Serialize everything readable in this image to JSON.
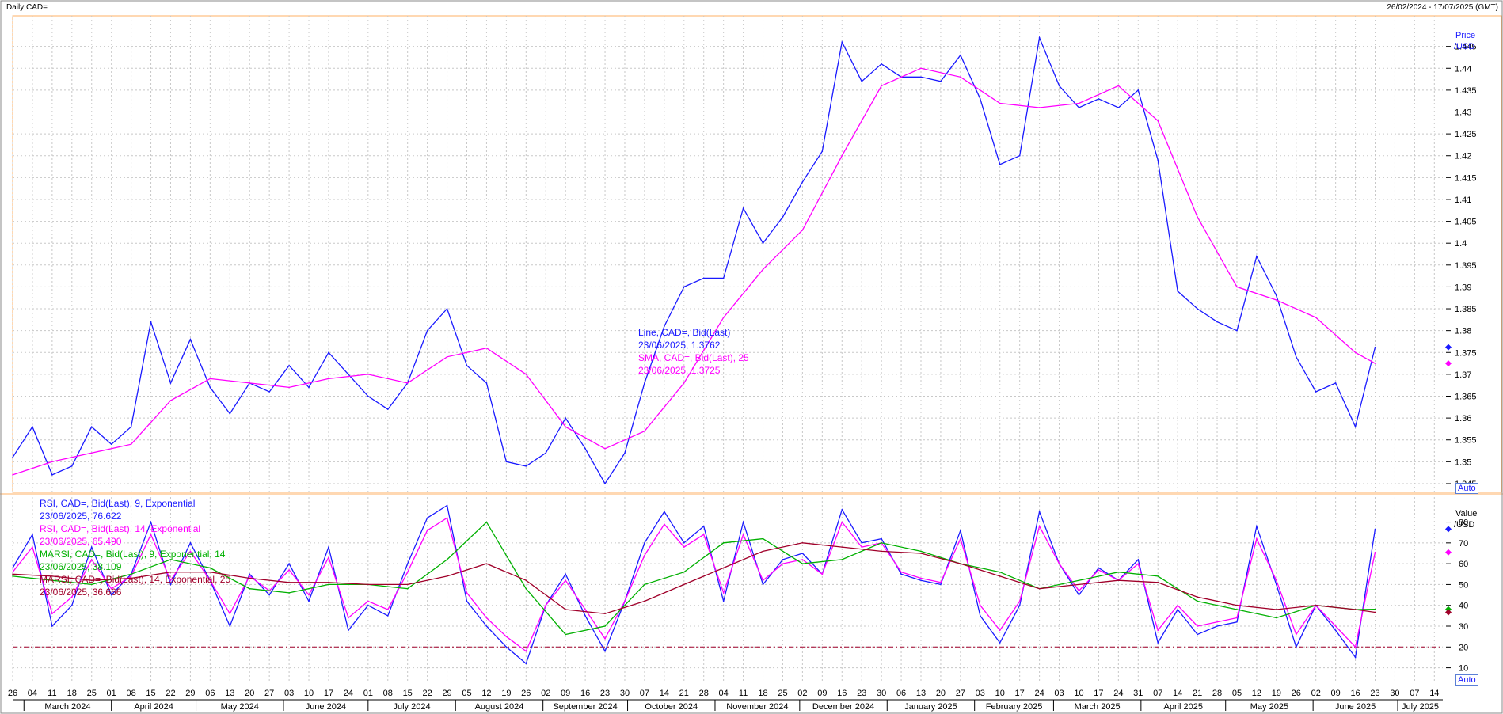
{
  "header": {
    "title": "Daily CAD=",
    "date_range": "26/02/2024 - 17/07/2025 (GMT)"
  },
  "colors": {
    "line": "#1a1aff",
    "sma": "#ff00ff",
    "rsi14": "#ff00ff",
    "marsi9": "#00b000",
    "marsi14": "#a0002a",
    "band": "#a0002a",
    "grid": "#c8c8c8",
    "frame": "#ffb266"
  },
  "buttons": {
    "auto_top": "Auto",
    "auto_bottom": "Auto"
  },
  "annotations": {
    "price": [
      {
        "text": "Line, CAD=, Bid(Last)",
        "color": "#1a1aff"
      },
      {
        "text": "23/06/2025, 1.3762",
        "color": "#1a1aff"
      },
      {
        "text": "SMA, CAD=, Bid(Last),  25",
        "color": "#ff00ff"
      },
      {
        "text": "23/06/2025, 1.3725",
        "color": "#ff00ff"
      }
    ],
    "rsi": [
      {
        "text": "RSI, CAD=, Bid(Last),  9, Exponential",
        "color": "#1a1aff"
      },
      {
        "text": "23/06/2025, 76.622",
        "color": "#1a1aff"
      },
      {
        "text": "RSI, CAD=, Bid(Last),  14, Exponential",
        "color": "#ff00ff"
      },
      {
        "text": "23/06/2025, 65.490",
        "color": "#ff00ff"
      },
      {
        "text": "MARSI, CAD=, Bid(Last),  9, Exponential, 14",
        "color": "#00b000"
      },
      {
        "text": "23/06/2025, 38.109",
        "color": "#00b000"
      },
      {
        "text": "MARSI, CAD=, Bid(Last),  14, Exponential, 25",
        "color": "#a0002a"
      },
      {
        "text": "23/06/2025, 36.666",
        "color": "#a0002a"
      }
    ]
  },
  "chart_data": [
    {
      "type": "line",
      "panel": "price",
      "yaxis_title": [
        "Price",
        "/USD"
      ],
      "ylim": [
        1.343,
        1.452
      ],
      "yticks": [
        "1.345",
        "1.35",
        "1.355",
        "1.36",
        "1.365",
        "1.37",
        "1.375",
        "1.38",
        "1.385",
        "1.39",
        "1.395",
        "1.4",
        "1.405",
        "1.41",
        "1.415",
        "1.42",
        "1.425",
        "1.43",
        "1.435",
        "1.44",
        "1.445"
      ],
      "grid": true,
      "x_start": "2024-02-26",
      "x_end": "2025-07-17",
      "week_labels": [
        "26",
        "04",
        "11",
        "18",
        "25",
        "01",
        "08",
        "15",
        "22",
        "29",
        "06",
        "13",
        "20",
        "27",
        "03",
        "10",
        "17",
        "24",
        "01",
        "08",
        "15",
        "22",
        "29",
        "05",
        "12",
        "19",
        "26",
        "02",
        "09",
        "16",
        "23",
        "30",
        "07",
        "14",
        "21",
        "28",
        "04",
        "11",
        "18",
        "25",
        "02",
        "09",
        "16",
        "23",
        "30",
        "06",
        "13",
        "20",
        "27",
        "03",
        "10",
        "17",
        "24",
        "03",
        "10",
        "17",
        "24",
        "31",
        "07",
        "14",
        "21",
        "28",
        "05",
        "12",
        "19",
        "26",
        "02",
        "09",
        "16",
        "23",
        "30",
        "07",
        "14"
      ],
      "month_labels": [
        "March 2024",
        "April 2024",
        "May 2024",
        "June 2024",
        "July 2024",
        "August 2024",
        "September 2024",
        "October 2024",
        "November 2024",
        "December 2024",
        "January 2025",
        "February 2025",
        "March 2025",
        "April 2025",
        "May 2025",
        "June 2025",
        "July 2025"
      ],
      "series": [
        {
          "name": "Line, CAD=, Bid(Last)",
          "color": "#1a1aff",
          "x": [
            "2024-02-26",
            "2024-03-04",
            "2024-03-11",
            "2024-03-18",
            "2024-03-25",
            "2024-04-01",
            "2024-04-08",
            "2024-04-15",
            "2024-04-22",
            "2024-04-29",
            "2024-05-06",
            "2024-05-13",
            "2024-05-20",
            "2024-05-27",
            "2024-06-03",
            "2024-06-10",
            "2024-06-17",
            "2024-06-24",
            "2024-07-01",
            "2024-07-08",
            "2024-07-15",
            "2024-07-22",
            "2024-07-29",
            "2024-08-05",
            "2024-08-12",
            "2024-08-19",
            "2024-08-26",
            "2024-09-02",
            "2024-09-09",
            "2024-09-16",
            "2024-09-23",
            "2024-09-30",
            "2024-10-07",
            "2024-10-14",
            "2024-10-21",
            "2024-10-28",
            "2024-11-04",
            "2024-11-11",
            "2024-11-18",
            "2024-11-25",
            "2024-12-02",
            "2024-12-09",
            "2024-12-16",
            "2024-12-23",
            "2024-12-30",
            "2025-01-06",
            "2025-01-13",
            "2025-01-20",
            "2025-01-27",
            "2025-02-03",
            "2025-02-10",
            "2025-02-17",
            "2025-02-24",
            "2025-03-03",
            "2025-03-10",
            "2025-03-17",
            "2025-03-24",
            "2025-03-31",
            "2025-04-07",
            "2025-04-14",
            "2025-04-21",
            "2025-04-28",
            "2025-05-05",
            "2025-05-12",
            "2025-05-19",
            "2025-05-26",
            "2025-06-02",
            "2025-06-09",
            "2025-06-16",
            "2025-06-23"
          ],
          "y": [
            1.351,
            1.358,
            1.347,
            1.349,
            1.358,
            1.354,
            1.358,
            1.382,
            1.368,
            1.378,
            1.367,
            1.361,
            1.368,
            1.366,
            1.372,
            1.367,
            1.375,
            1.37,
            1.365,
            1.362,
            1.368,
            1.38,
            1.385,
            1.372,
            1.368,
            1.35,
            1.349,
            1.352,
            1.36,
            1.353,
            1.345,
            1.352,
            1.368,
            1.381,
            1.39,
            1.392,
            1.392,
            1.408,
            1.4,
            1.406,
            1.414,
            1.421,
            1.446,
            1.437,
            1.441,
            1.438,
            1.438,
            1.437,
            1.443,
            1.433,
            1.418,
            1.42,
            1.447,
            1.436,
            1.431,
            1.433,
            1.431,
            1.435,
            1.419,
            1.389,
            1.385,
            1.382,
            1.38,
            1.397,
            1.388,
            1.374,
            1.366,
            1.368,
            1.358,
            1.3762
          ]
        },
        {
          "name": "SMA, CAD=, Bid(Last),  25",
          "color": "#ff00ff",
          "x": [
            "2024-02-26",
            "2024-03-11",
            "2024-03-25",
            "2024-04-08",
            "2024-04-22",
            "2024-05-06",
            "2024-05-20",
            "2024-06-03",
            "2024-06-17",
            "2024-07-01",
            "2024-07-15",
            "2024-07-29",
            "2024-08-12",
            "2024-08-26",
            "2024-09-09",
            "2024-09-23",
            "2024-10-07",
            "2024-10-21",
            "2024-11-04",
            "2024-11-18",
            "2024-12-02",
            "2024-12-16",
            "2024-12-30",
            "2025-01-13",
            "2025-01-27",
            "2025-02-10",
            "2025-02-24",
            "2025-03-10",
            "2025-03-24",
            "2025-04-07",
            "2025-04-21",
            "2025-05-05",
            "2025-05-19",
            "2025-06-02",
            "2025-06-16",
            "2025-06-23"
          ],
          "y": [
            1.347,
            1.35,
            1.352,
            1.354,
            1.364,
            1.369,
            1.368,
            1.367,
            1.369,
            1.37,
            1.368,
            1.374,
            1.376,
            1.37,
            1.358,
            1.353,
            1.357,
            1.368,
            1.383,
            1.394,
            1.403,
            1.42,
            1.436,
            1.44,
            1.438,
            1.432,
            1.431,
            1.432,
            1.436,
            1.428,
            1.406,
            1.39,
            1.387,
            1.383,
            1.375,
            1.3725
          ]
        }
      ]
    },
    {
      "type": "line",
      "panel": "rsi",
      "yaxis_title": [
        "Value",
        "/USD"
      ],
      "ylim": [
        3,
        92
      ],
      "yticks": [
        "10",
        "20",
        "30",
        "40",
        "50",
        "60",
        "70",
        "80"
      ],
      "bands": [
        20,
        80
      ],
      "grid": true,
      "series": [
        {
          "name": "RSI, CAD=, Bid(Last),  9, Exponential",
          "color": "#1a1aff",
          "x": [
            "2024-02-26",
            "2024-03-04",
            "2024-03-11",
            "2024-03-18",
            "2024-03-25",
            "2024-04-01",
            "2024-04-08",
            "2024-04-15",
            "2024-04-22",
            "2024-04-29",
            "2024-05-06",
            "2024-05-13",
            "2024-05-20",
            "2024-05-27",
            "2024-06-03",
            "2024-06-10",
            "2024-06-17",
            "2024-06-24",
            "2024-07-01",
            "2024-07-08",
            "2024-07-15",
            "2024-07-22",
            "2024-07-29",
            "2024-08-05",
            "2024-08-12",
            "2024-08-19",
            "2024-08-26",
            "2024-09-02",
            "2024-09-09",
            "2024-09-16",
            "2024-09-23",
            "2024-09-30",
            "2024-10-07",
            "2024-10-14",
            "2024-10-21",
            "2024-10-28",
            "2024-11-04",
            "2024-11-11",
            "2024-11-18",
            "2024-11-25",
            "2024-12-02",
            "2024-12-09",
            "2024-12-16",
            "2024-12-23",
            "2024-12-30",
            "2025-01-06",
            "2025-01-13",
            "2025-01-20",
            "2025-01-27",
            "2025-02-03",
            "2025-02-10",
            "2025-02-17",
            "2025-02-24",
            "2025-03-03",
            "2025-03-10",
            "2025-03-17",
            "2025-03-24",
            "2025-03-31",
            "2025-04-07",
            "2025-04-14",
            "2025-04-21",
            "2025-04-28",
            "2025-05-05",
            "2025-05-12",
            "2025-05-19",
            "2025-05-26",
            "2025-06-02",
            "2025-06-09",
            "2025-06-16",
            "2025-06-23"
          ],
          "y": [
            58,
            74,
            30,
            40,
            68,
            45,
            55,
            80,
            50,
            70,
            52,
            30,
            55,
            45,
            60,
            42,
            68,
            28,
            40,
            35,
            60,
            82,
            88,
            42,
            30,
            20,
            12,
            40,
            55,
            35,
            18,
            42,
            70,
            85,
            70,
            78,
            42,
            80,
            50,
            62,
            65,
            55,
            86,
            70,
            72,
            55,
            52,
            50,
            76,
            35,
            22,
            40,
            85,
            60,
            45,
            58,
            52,
            62,
            22,
            38,
            26,
            30,
            32,
            78,
            50,
            20,
            40,
            28,
            15,
            76.622
          ]
        },
        {
          "name": "RSI, CAD=, Bid(Last),  14, Exponential",
          "color": "#ff00ff",
          "x": [
            "2024-02-26",
            "2024-03-04",
            "2024-03-11",
            "2024-03-18",
            "2024-03-25",
            "2024-04-01",
            "2024-04-08",
            "2024-04-15",
            "2024-04-22",
            "2024-04-29",
            "2024-05-06",
            "2024-05-13",
            "2024-05-20",
            "2024-05-27",
            "2024-06-03",
            "2024-06-10",
            "2024-06-17",
            "2024-06-24",
            "2024-07-01",
            "2024-07-08",
            "2024-07-15",
            "2024-07-22",
            "2024-07-29",
            "2024-08-05",
            "2024-08-12",
            "2024-08-19",
            "2024-08-26",
            "2024-09-02",
            "2024-09-09",
            "2024-09-16",
            "2024-09-23",
            "2024-09-30",
            "2024-10-07",
            "2024-10-14",
            "2024-10-21",
            "2024-10-28",
            "2024-11-04",
            "2024-11-11",
            "2024-11-18",
            "2024-11-25",
            "2024-12-02",
            "2024-12-09",
            "2024-12-16",
            "2024-12-23",
            "2024-12-30",
            "2025-01-06",
            "2025-01-13",
            "2025-01-20",
            "2025-01-27",
            "2025-02-03",
            "2025-02-10",
            "2025-02-17",
            "2025-02-24",
            "2025-03-03",
            "2025-03-10",
            "2025-03-17",
            "2025-03-24",
            "2025-03-31",
            "2025-04-07",
            "2025-04-14",
            "2025-04-21",
            "2025-04-28",
            "2025-05-05",
            "2025-05-12",
            "2025-05-19",
            "2025-05-26",
            "2025-06-02",
            "2025-06-09",
            "2025-06-16",
            "2025-06-23"
          ],
          "y": [
            56,
            68,
            36,
            44,
            62,
            48,
            54,
            74,
            52,
            66,
            52,
            36,
            54,
            47,
            57,
            45,
            63,
            34,
            42,
            38,
            56,
            76,
            82,
            46,
            34,
            25,
            18,
            40,
            52,
            38,
            24,
            42,
            64,
            79,
            68,
            74,
            46,
            74,
            52,
            60,
            62,
            55,
            80,
            68,
            70,
            56,
            53,
            51,
            72,
            40,
            28,
            42,
            78,
            60,
            47,
            57,
            52,
            60,
            28,
            40,
            30,
            32,
            34,
            72,
            52,
            26,
            40,
            30,
            20,
            65.49
          ]
        },
        {
          "name": "MARSI, CAD=, Bid(Last),  9, Exponential, 14",
          "color": "#00b000",
          "x": [
            "2024-02-26",
            "2024-03-11",
            "2024-03-25",
            "2024-04-08",
            "2024-04-22",
            "2024-05-06",
            "2024-05-20",
            "2024-06-03",
            "2024-06-17",
            "2024-07-01",
            "2024-07-15",
            "2024-07-29",
            "2024-08-12",
            "2024-08-26",
            "2024-09-09",
            "2024-09-23",
            "2024-10-07",
            "2024-10-21",
            "2024-11-04",
            "2024-11-18",
            "2024-12-02",
            "2024-12-16",
            "2024-12-30",
            "2025-01-13",
            "2025-01-27",
            "2025-02-10",
            "2025-02-24",
            "2025-03-10",
            "2025-03-24",
            "2025-04-07",
            "2025-04-21",
            "2025-05-05",
            "2025-05-19",
            "2025-06-02",
            "2025-06-16",
            "2025-06-23"
          ],
          "y": [
            54,
            52,
            50,
            55,
            62,
            58,
            48,
            46,
            50,
            50,
            48,
            62,
            80,
            48,
            26,
            30,
            50,
            56,
            70,
            72,
            60,
            62,
            70,
            66,
            60,
            56,
            48,
            52,
            56,
            54,
            42,
            38,
            34,
            40,
            38,
            38.109
          ]
        },
        {
          "name": "MARSI, CAD=, Bid(Last),  14, Exponential, 25",
          "color": "#a0002a",
          "x": [
            "2024-02-26",
            "2024-03-11",
            "2024-03-25",
            "2024-04-08",
            "2024-04-22",
            "2024-05-06",
            "2024-05-20",
            "2024-06-03",
            "2024-06-17",
            "2024-07-01",
            "2024-07-15",
            "2024-07-29",
            "2024-08-12",
            "2024-08-26",
            "2024-09-09",
            "2024-09-23",
            "2024-10-07",
            "2024-10-21",
            "2024-11-04",
            "2024-11-18",
            "2024-12-02",
            "2024-12-16",
            "2024-12-30",
            "2025-01-13",
            "2025-01-27",
            "2025-02-10",
            "2025-02-24",
            "2025-03-10",
            "2025-03-24",
            "2025-04-07",
            "2025-04-21",
            "2025-05-05",
            "2025-05-19",
            "2025-06-02",
            "2025-06-16",
            "2025-06-23"
          ],
          "y": [
            55,
            54,
            52,
            53,
            56,
            56,
            53,
            51,
            51,
            50,
            50,
            54,
            60,
            52,
            38,
            36,
            42,
            50,
            58,
            66,
            70,
            68,
            66,
            65,
            60,
            54,
            48,
            50,
            52,
            51,
            44,
            40,
            38,
            40,
            38,
            36.666
          ]
        }
      ]
    }
  ]
}
